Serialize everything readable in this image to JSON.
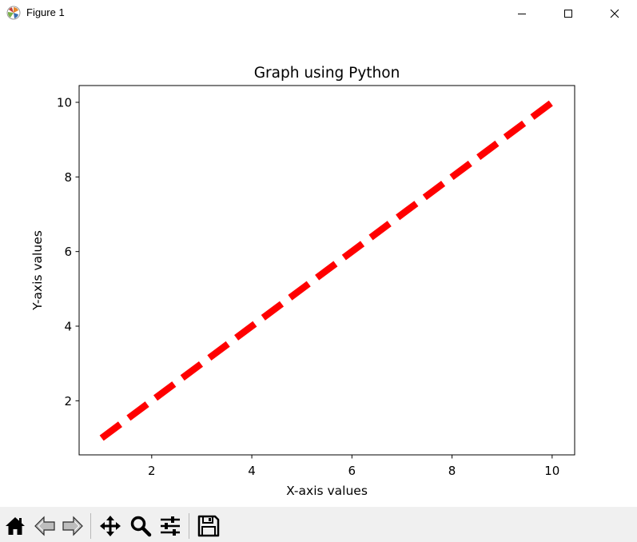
{
  "window": {
    "title": "Figure 1",
    "icons": [
      "matplotlib-logo-icon",
      "minimize-icon",
      "maximize-icon",
      "close-icon"
    ]
  },
  "toolbar": {
    "buttons": [
      "home-icon",
      "back-arrow-icon",
      "forward-arrow-icon",
      "pan-move-icon",
      "zoom-magnifier-icon",
      "configure-subplots-icon",
      "save-floppy-icon"
    ]
  },
  "chart_data": {
    "type": "line",
    "title": "Graph using Python",
    "xlabel": "X-axis values",
    "ylabel": "Y-axis values",
    "x": [
      1,
      10
    ],
    "series": [
      {
        "values": [
          1,
          10
        ],
        "color": "#ff0000",
        "linestyle": "dashed"
      }
    ],
    "xlim": [
      0.55,
      10.45
    ],
    "ylim": [
      0.55,
      10.45
    ],
    "xticks": [
      "2",
      "4",
      "6",
      "8",
      "10"
    ],
    "yticks": [
      "2",
      "4",
      "6",
      "8",
      "10"
    ],
    "grid": false
  }
}
